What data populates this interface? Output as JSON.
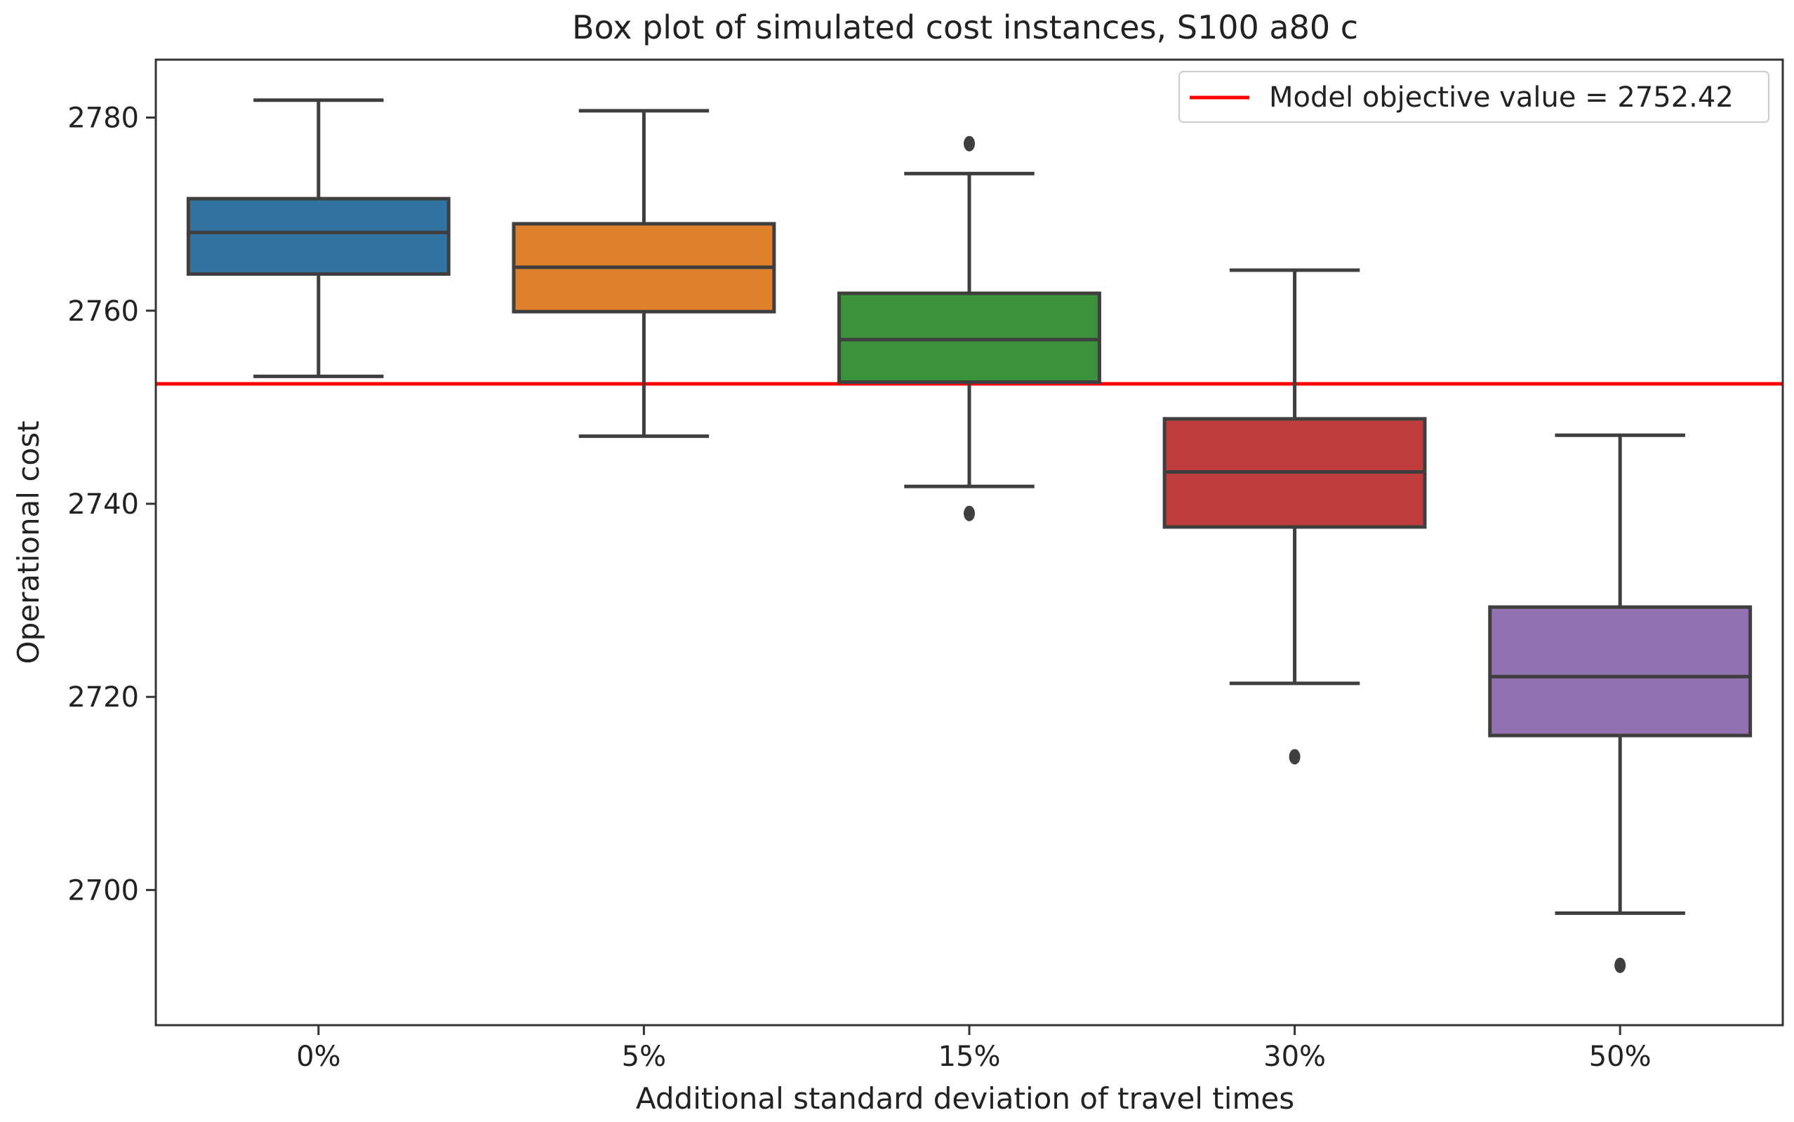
{
  "chart_data": {
    "type": "box",
    "title": "Box plot of simulated cost instances, S100 a80 c",
    "xlabel": "Additional standard deviation of travel times",
    "ylabel": "Operational cost",
    "ylim": [
      2686,
      2786
    ],
    "yticks": [
      2700,
      2720,
      2740,
      2760,
      2780
    ],
    "ytick_labels": [
      "2700",
      "2720",
      "2740",
      "2760",
      "2780"
    ],
    "categories": [
      "0%",
      "5%",
      "15%",
      "30%",
      "50%"
    ],
    "boxes": [
      {
        "category": "0%",
        "color": "#3274a1",
        "whisker_low": 2753.2,
        "q1": 2763.8,
        "median": 2768.1,
        "q3": 2771.6,
        "whisker_high": 2781.8,
        "outliers": []
      },
      {
        "category": "5%",
        "color": "#e1812c",
        "whisker_low": 2747.0,
        "q1": 2759.9,
        "median": 2764.5,
        "q3": 2769.0,
        "whisker_high": 2780.7,
        "outliers": []
      },
      {
        "category": "15%",
        "color": "#3a923a",
        "whisker_low": 2741.8,
        "q1": 2752.6,
        "median": 2757.0,
        "q3": 2761.8,
        "whisker_high": 2774.2,
        "outliers": [
          2777.3,
          2739.0
        ]
      },
      {
        "category": "30%",
        "color": "#c03d3e",
        "whisker_low": 2721.4,
        "q1": 2737.6,
        "median": 2743.3,
        "q3": 2748.8,
        "whisker_high": 2764.2,
        "outliers": [
          2713.8
        ]
      },
      {
        "category": "50%",
        "color": "#9372b2",
        "whisker_low": 2697.6,
        "q1": 2716.0,
        "median": 2722.1,
        "q3": 2729.3,
        "whisker_high": 2747.1,
        "outliers": [
          2692.2
        ]
      }
    ],
    "reference_line": {
      "value": 2752.42,
      "color": "#ff0000",
      "label": "Model objective value = 2752.42"
    },
    "legend_position": "top-right",
    "grid": false
  }
}
